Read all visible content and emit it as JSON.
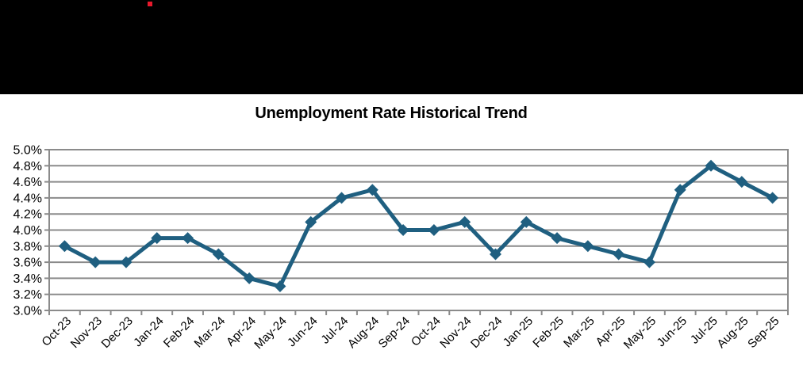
{
  "header": {
    "background_color": "#000000",
    "brand_mark_color": "#E8192C"
  },
  "chart_data": {
    "type": "line",
    "title": "Unemployment Rate Historical Trend",
    "categories": [
      "Oct-23",
      "Nov-23",
      "Dec-23",
      "Jan-24",
      "Feb-24",
      "Mar-24",
      "Apr-24",
      "May-24",
      "Jun-24",
      "Jul-24",
      "Aug-24",
      "Sep-24",
      "Oct-24",
      "Nov-24",
      "Dec-24",
      "Jan-25",
      "Feb-25",
      "Mar-25",
      "Apr-25",
      "May-25",
      "Jun-25",
      "Jul-25",
      "Aug-25",
      "Sep-25"
    ],
    "series": [
      {
        "name": "Unemployment Rate",
        "values": [
          3.8,
          3.6,
          3.6,
          3.9,
          3.9,
          3.7,
          3.4,
          3.3,
          4.1,
          4.4,
          4.5,
          4.0,
          4.0,
          4.1,
          3.7,
          4.1,
          3.9,
          3.8,
          3.7,
          3.6,
          4.5,
          4.8,
          4.6,
          4.4
        ]
      }
    ],
    "xlabel": "",
    "ylabel": "",
    "ylim": [
      3.0,
      5.0
    ],
    "y_tick_step": 0.2,
    "y_tick_labels": [
      "3.0%",
      "3.2%",
      "3.4%",
      "3.6%",
      "3.8%",
      "4.0%",
      "4.2%",
      "4.4%",
      "4.6%",
      "4.8%",
      "5.0%"
    ],
    "grid": "horizontal",
    "legend_position": "none",
    "marker_shape": "diamond",
    "colors": {
      "line": "#1F5F80",
      "gridline": "#8B8B8B",
      "axis": "#8B8B8B",
      "title_text": "#000000",
      "tick_label_text": "#000000"
    }
  }
}
